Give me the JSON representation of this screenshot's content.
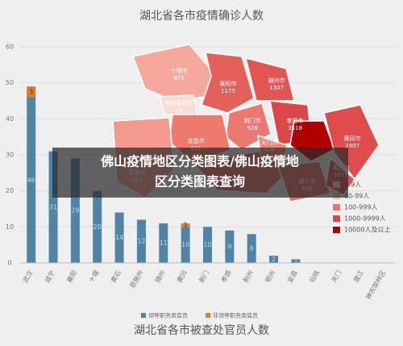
{
  "map": {
    "title": "湖北省各市疫情确诊人数",
    "regions": [
      {
        "name": "十堰市",
        "value": 672
      },
      {
        "name": "神农架林区",
        "value": 11
      },
      {
        "name": "襄阳市",
        "value": 1175
      },
      {
        "name": "随州市",
        "value": 1307
      },
      {
        "name": "荆门市",
        "value": 928
      },
      {
        "name": "孝感市",
        "value": 3518
      },
      {
        "name": "宜昌市",
        "value": 931
      },
      {
        "name": "天门市",
        "value": 496
      },
      {
        "name": "黄冈市",
        "value": 2907
      },
      {
        "name": "恩施州",
        "value": 252
      },
      {
        "name": "黄石市",
        "value": 1015
      },
      {
        "name": "咸宁市",
        "value": 836
      }
    ],
    "legend": [
      {
        "label": "1-9人",
        "color": "#fbe3da"
      },
      {
        "label": "10-99人",
        "color": "#f6bfae"
      },
      {
        "label": "100-999人",
        "color": "#ee7566"
      },
      {
        "label": "1000-9999人",
        "color": "#dc4545"
      },
      {
        "label": "10000人及以上",
        "color": "#b00000"
      }
    ]
  },
  "banner": {
    "lines": [
      "佛山疫情地区分类图表/佛山疫情地",
      "区分类图表查询"
    ]
  },
  "chart_data": {
    "type": "bar",
    "title": "湖北省各市被查处官员人数",
    "categories": [
      "武汉",
      "咸宁",
      "襄阳",
      "十堰",
      "黄石",
      "恩施州",
      "随州",
      "黄冈",
      "荆门",
      "孝感",
      "荆州",
      "鄂州",
      "宜昌",
      "仙桃",
      "天门",
      "潜江",
      "神农架林区"
    ],
    "series": [
      {
        "name": "领导职务类官员",
        "color": "#4f84a6",
        "values": [
          46,
          31,
          29,
          20,
          14,
          12,
          11,
          10,
          10,
          9,
          8,
          2,
          1,
          0,
          0,
          0,
          0
        ]
      },
      {
        "name": "非领导职务类官员",
        "color": "#e07b2c",
        "values": [
          3,
          0,
          0,
          0,
          0,
          0,
          0,
          1,
          0,
          0,
          0,
          0,
          0,
          0,
          0,
          0,
          0
        ]
      }
    ],
    "stacked": true,
    "ylim": [
      0,
      60
    ],
    "yticks": [
      0,
      10,
      20,
      30,
      40,
      50,
      60
    ],
    "grid": true
  }
}
